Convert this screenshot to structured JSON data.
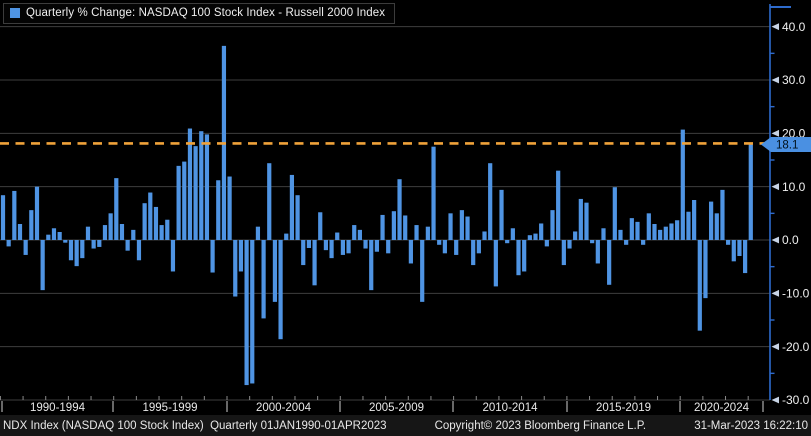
{
  "title_bar": {
    "title": "Quarterly % Change: NASDAQ 100 Stock Index - Russell 2000 Index",
    "legend_color": "#4f94e3"
  },
  "y_axis": {
    "tick_labels": [
      "40.0",
      "30.0",
      "20.0",
      "10.0",
      "0.0",
      "-10.0",
      "-20.0",
      "-30.0"
    ],
    "last_value_badge": "18.1",
    "badge_color": "#4a90e2"
  },
  "x_axis": {
    "section_labels": [
      "1990-1994",
      "1995-1999",
      "2000-2004",
      "2005-2009",
      "2010-2014",
      "2015-2019",
      "2020-2024"
    ]
  },
  "reference_line": {
    "value": 18.1,
    "color": "#f0a23a",
    "style": "dashed"
  },
  "status_bar": {
    "left": "NDX Index (NASDAQ 100 Stock Index)  Quarterly 01JAN1990-01APR2023",
    "center": "Copyright© 2023 Bloomberg Finance L.P.",
    "right": "31-Mar-2023 16:22:10"
  },
  "chart_data": {
    "type": "bar",
    "title": "Quarterly % Change: NASDAQ 100 Stock Index - Russell 2000 Index",
    "x_start": "1990-Q1",
    "x_end": "2023-Q1",
    "frequency": "quarterly",
    "x_section_labels": [
      "1990-1994",
      "1995-1999",
      "2000-2004",
      "2005-2009",
      "2010-2014",
      "2015-2019",
      "2020-2024"
    ],
    "ylim": [
      -30,
      40
    ],
    "y_ticks": [
      40,
      30,
      20,
      10,
      0,
      -10,
      -20,
      -30
    ],
    "grid": true,
    "legend_position": "top-left",
    "bar_color": "#4f94e3",
    "reference_line_value": 18.1,
    "last_value": 18.1,
    "values": [
      8.4,
      -1.2,
      9.2,
      3.0,
      -2.8,
      5.6,
      10.0,
      -9.4,
      1.0,
      2.2,
      1.5,
      -0.5,
      -3.8,
      -4.9,
      -3.4,
      2.5,
      -1.6,
      -1.3,
      2.8,
      5.0,
      11.6,
      3.0,
      -2.0,
      1.9,
      -3.8,
      6.9,
      8.9,
      6.2,
      2.8,
      3.8,
      -5.9,
      13.9,
      14.7,
      20.9,
      17.6,
      20.4,
      19.8,
      -6.1,
      11.2,
      36.4,
      11.9,
      -10.6,
      -5.9,
      -27.2,
      -26.9,
      2.5,
      -14.7,
      14.4,
      -11.6,
      -18.6,
      1.2,
      12.2,
      8.4,
      -4.7,
      -1.5,
      -8.5,
      5.2,
      -1.9,
      -3.4,
      1.4,
      -2.8,
      -2.5,
      2.8,
      1.9,
      -1.6,
      -9.4,
      -2.2,
      4.7,
      -2.5,
      5.4,
      11.4,
      4.6,
      -4.4,
      2.8,
      -11.6,
      2.5,
      17.5,
      -0.9,
      -2.5,
      5.0,
      -2.8,
      5.6,
      4.4,
      -4.7,
      -2.5,
      1.6,
      14.4,
      -8.7,
      9.4,
      -0.6,
      2.2,
      -6.6,
      -5.9,
      0.9,
      1.2,
      3.1,
      -1.2,
      5.6,
      13.0,
      -4.7,
      -1.6,
      1.6,
      7.7,
      7.0,
      -0.6,
      -4.4,
      2.2,
      -8.4,
      9.9,
      1.9,
      -0.9,
      4.1,
      3.4,
      -0.9,
      5.0,
      3.0,
      1.9,
      2.5,
      3.1,
      3.7,
      20.7,
      5.3,
      7.5,
      -17.0,
      -10.9,
      7.2,
      5.0,
      9.4,
      -0.9,
      -4.0,
      -3.0,
      -6.2,
      18.1
    ]
  }
}
